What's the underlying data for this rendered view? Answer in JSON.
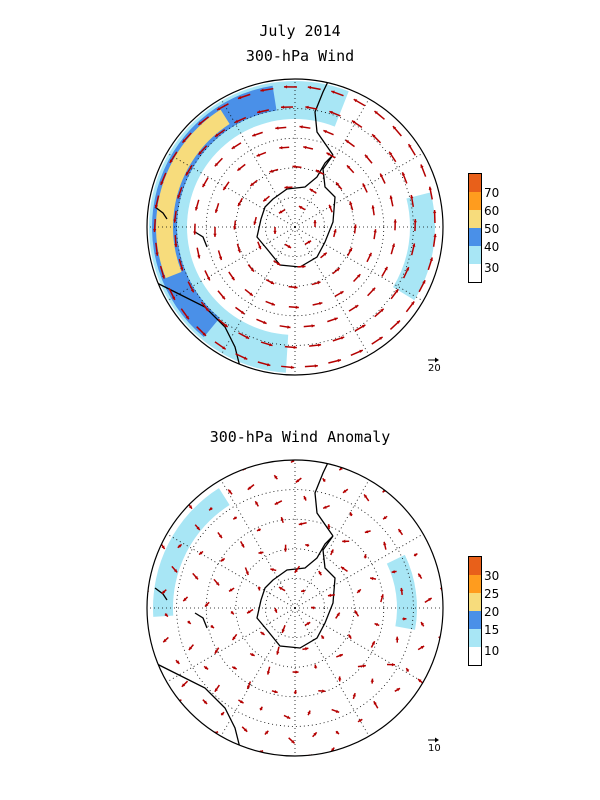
{
  "titles": {
    "month": "July 2014",
    "panel1": "300-hPa Wind",
    "panel2": "300-hPa Wind Anomaly"
  },
  "colorbar1": {
    "labels": [
      "70",
      "60",
      "50",
      "40",
      "30"
    ],
    "colors": [
      "#e8601a",
      "#ff9c1e",
      "#f7dc7c",
      "#4a90e8",
      "#a8e6f5",
      "#ffffff"
    ]
  },
  "colorbar2": {
    "labels": [
      "30",
      "25",
      "20",
      "15",
      "10"
    ],
    "colors": [
      "#e8601a",
      "#ff9c1e",
      "#f7dc7c",
      "#4a90e8",
      "#a8e6f5",
      "#ffffff"
    ]
  },
  "reference_vectors": {
    "panel1": "20",
    "panel2": "10"
  },
  "colors": {
    "vector": "#b40000",
    "coast": "#000000",
    "grid": "#000000"
  }
}
